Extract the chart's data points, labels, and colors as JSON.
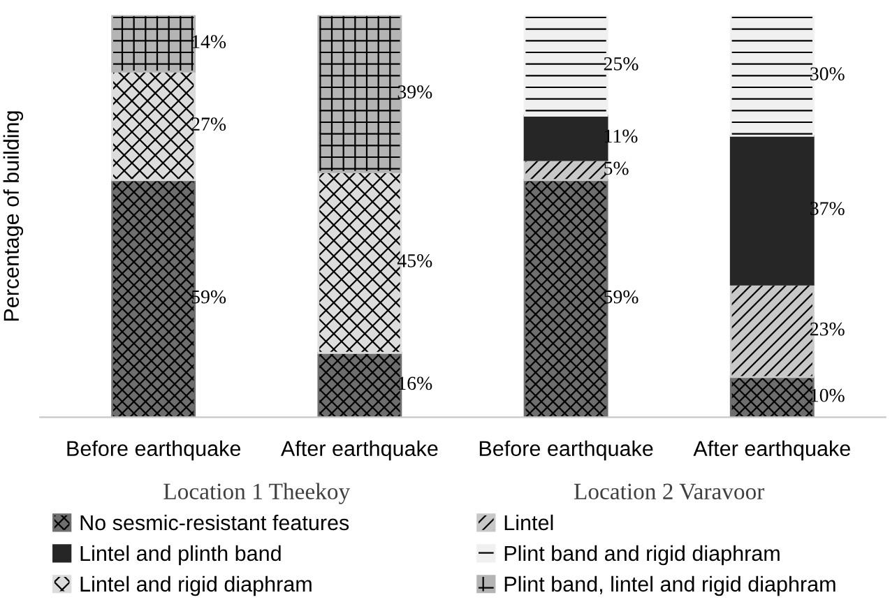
{
  "chart_data": {
    "type": "bar",
    "stacked": true,
    "ylabel": "Percentage of building",
    "categories": [
      "Before earthquake",
      "After earthquake",
      "Before earthquake",
      "After earthquake"
    ],
    "series": [
      {
        "name": "No sesmic-resistant features",
        "color": "#6e6e6e",
        "values": [
          59,
          16,
          59,
          10
        ],
        "value_labels": [
          "59%",
          "16%",
          "59%",
          "10%"
        ]
      },
      {
        "name": "Lintel",
        "color": "#c8c8c8",
        "values": [
          null,
          null,
          5,
          23
        ],
        "value_labels": [
          null,
          null,
          "5%",
          "23%"
        ]
      },
      {
        "name": "Lintel and plinth band",
        "color": "#262626",
        "values": [
          null,
          null,
          11,
          37
        ],
        "value_labels": [
          null,
          null,
          "11%",
          "37%"
        ]
      },
      {
        "name": "Lintel and rigid diaphram",
        "color": "#dcdcdc",
        "values": [
          27,
          45,
          null,
          null
        ],
        "value_labels": [
          "27%",
          "45%",
          null,
          null
        ]
      },
      {
        "name": "Plint band and rigid diaphram",
        "color": "#f0f0f0",
        "values": [
          null,
          null,
          25,
          30
        ],
        "value_labels": [
          null,
          null,
          "25%",
          "30%"
        ]
      },
      {
        "name": "Plint band, lintel and rigid diaphram",
        "color": "#b4b4b4",
        "values": [
          14,
          39,
          null,
          null
        ],
        "value_labels": [
          "14%",
          "39%",
          null,
          null
        ]
      }
    ],
    "annotations": [
      "Location 1 Theekoy",
      "Location 2 Varavoor"
    ],
    "legend": "bottom",
    "tick_labels": "x",
    "grid": false
  }
}
